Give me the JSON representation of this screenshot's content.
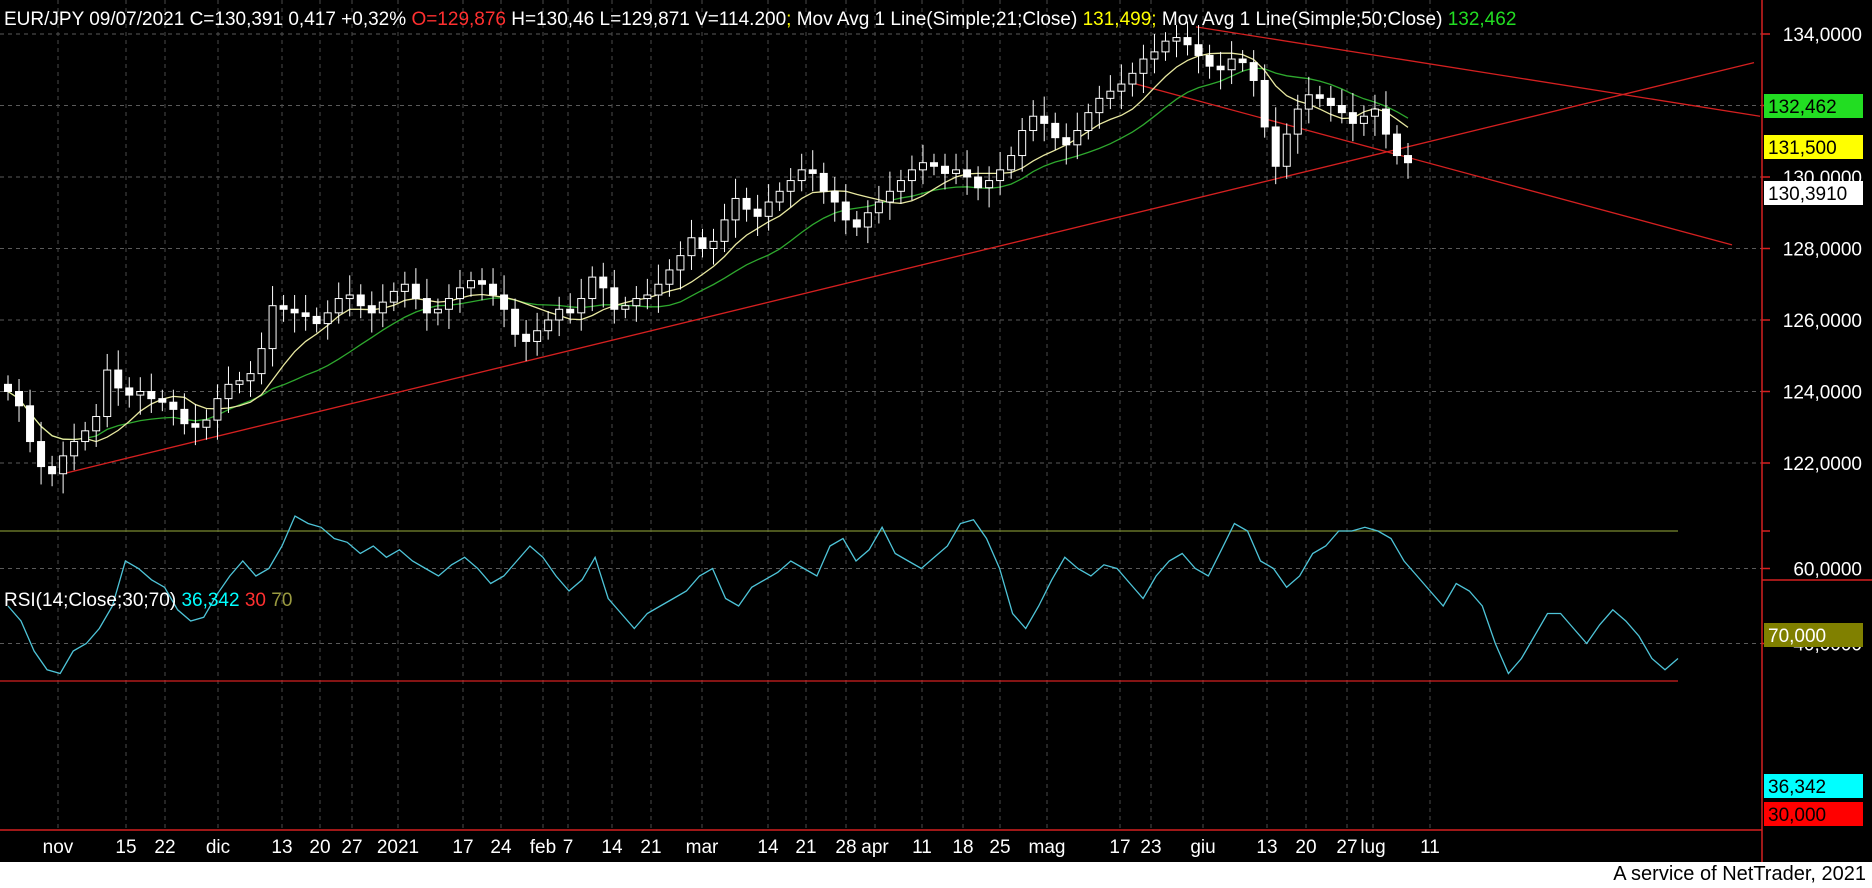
{
  "header": {
    "symbol": "EUR/JPY",
    "date": "09/07/2021",
    "close": "C=130,391",
    "change": "0,417",
    "change_pct": "+0,32%",
    "open": "O=129,876",
    "high": "H=130,46",
    "low": "L=129,871",
    "volume": "V=114.200",
    "ma21_label": "Mov Avg 1 Line(Simple;21;Close)",
    "ma21_value": "131,499",
    "ma50_label": "Mov Avg 1 Line(Simple;50;Close)",
    "ma50_value": "132,462"
  },
  "rsi_header": {
    "label": "RSI(14;Close;30;70)",
    "value": "36,342",
    "lower": "30",
    "upper": "70"
  },
  "price_axis": {
    "ticks": [
      "134,0000",
      "132,0000",
      "130,0000",
      "128,0000",
      "126,0000",
      "124,0000",
      "122,0000"
    ],
    "tick_values": [
      134,
      132,
      130,
      128,
      126,
      124,
      122
    ],
    "tags": {
      "ma50": "132,462",
      "ma21": "131,500",
      "last": "130,3910"
    }
  },
  "rsi_axis": {
    "ticks": [
      "70,000",
      "60,0000",
      "40,0000"
    ],
    "tick_values": [
      70,
      60,
      40
    ],
    "tags": {
      "rsi": "36,342",
      "lower": "30,000"
    }
  },
  "x_axis": {
    "labels": [
      "nov",
      "15",
      "22",
      "dic",
      "13",
      "20",
      "27",
      "2021",
      "17",
      "24",
      "feb",
      "7",
      "14",
      "21",
      "mar",
      "14",
      "21",
      "28",
      "apr",
      "11",
      "18",
      "25",
      "mag",
      "17",
      "23",
      "giu",
      "13",
      "20",
      "27",
      "lug",
      "11"
    ]
  },
  "footer": "A service of NetTrader, 2021",
  "colors": {
    "background": "#000000",
    "candle": "#ffffff",
    "ma21": "#e8e8a0",
    "ma50": "#2ea82e",
    "trend": "#d42020",
    "rsi": "#4ec4d8",
    "rsi70": "#7a8a30",
    "rsi30": "#d42020",
    "tag_ma50": "#22dd22",
    "tag_ma21": "#ffff00",
    "tag_rsi": "#00ffff",
    "tag_lower": "#ff0000",
    "tag_upper": "#808000"
  },
  "chart_data": [
    {
      "type": "candlestick",
      "y_range": [
        121,
        134.5
      ],
      "series": [
        {
          "name": "EUR/JPY",
          "close": [
            124.0,
            123.6,
            122.6,
            121.9,
            121.7,
            122.2,
            122.6,
            122.9,
            123.3,
            124.6,
            124.1,
            123.9,
            124.0,
            123.8,
            123.7,
            123.5,
            123.1,
            123.0,
            123.2,
            123.8,
            124.2,
            124.3,
            124.5,
            125.2,
            126.4,
            126.3,
            126.2,
            126.1,
            125.9,
            126.2,
            126.6,
            126.7,
            126.4,
            126.2,
            126.5,
            126.8,
            127.0,
            126.6,
            126.2,
            126.3,
            126.6,
            126.9,
            127.1,
            127.0,
            126.7,
            126.3,
            125.6,
            125.4,
            125.7,
            126.0,
            126.3,
            126.2,
            126.6,
            127.2,
            126.9,
            126.3,
            126.4,
            126.6,
            126.7,
            127.0,
            127.4,
            127.8,
            128.3,
            128.0,
            128.2,
            128.8,
            129.4,
            129.1,
            128.9,
            129.3,
            129.6,
            129.9,
            130.2,
            130.1,
            129.6,
            129.3,
            128.8,
            128.6,
            129.0,
            129.3,
            129.6,
            129.9,
            130.2,
            130.4,
            130.3,
            130.1,
            130.2,
            130.0,
            129.7,
            129.9,
            130.2,
            130.6,
            131.3,
            131.7,
            131.5,
            131.1,
            130.9,
            131.3,
            131.8,
            132.2,
            132.4,
            132.6,
            132.9,
            133.3,
            133.5,
            133.8,
            133.9,
            133.7,
            133.4,
            133.1,
            133.0,
            133.3,
            133.2,
            132.7,
            131.4,
            130.3,
            131.2,
            131.9,
            132.3,
            132.2,
            132.0,
            131.8,
            131.5,
            131.7,
            131.9,
            131.2,
            130.6,
            130.4
          ]
        }
      ]
    },
    {
      "type": "line",
      "series": [
        {
          "name": "Mov Avg 1 Line(Simple;21;Close)",
          "last": 131.499
        },
        {
          "name": "Mov Avg 1 Line(Simple;50;Close)",
          "last": 132.462
        }
      ]
    },
    {
      "type": "line",
      "y_range": [
        25,
        80
      ],
      "levels": [
        30,
        70
      ],
      "series": [
        {
          "name": "RSI(14;Close;30;70)",
          "values": [
            50,
            46,
            38,
            33,
            32,
            38,
            40,
            44,
            50,
            62,
            60,
            57,
            55,
            49,
            46,
            47,
            53,
            58,
            62,
            58,
            60,
            66,
            74,
            72,
            71,
            68,
            67,
            64,
            66,
            63,
            65,
            62,
            60,
            58,
            61,
            63,
            60,
            56,
            58,
            62,
            66,
            63,
            58,
            54,
            57,
            63,
            52,
            48,
            44,
            48,
            50,
            52,
            54,
            58,
            60,
            52,
            50,
            55,
            57,
            59,
            62,
            60,
            58,
            66,
            68,
            62,
            65,
            71,
            64,
            62,
            60,
            63,
            66,
            72,
            73,
            68,
            60,
            48,
            44,
            50,
            57,
            63,
            60,
            58,
            61,
            60,
            56,
            52,
            58,
            62,
            64,
            60,
            58,
            65,
            72,
            70,
            62,
            60,
            55,
            58,
            64,
            66,
            70,
            70,
            71,
            70,
            68,
            62,
            58,
            54,
            50,
            56,
            54,
            50,
            40,
            32,
            36,
            42,
            48,
            48,
            44,
            40,
            45,
            49,
            46,
            42,
            36,
            33,
            36
          ]
        }
      ]
    }
  ]
}
